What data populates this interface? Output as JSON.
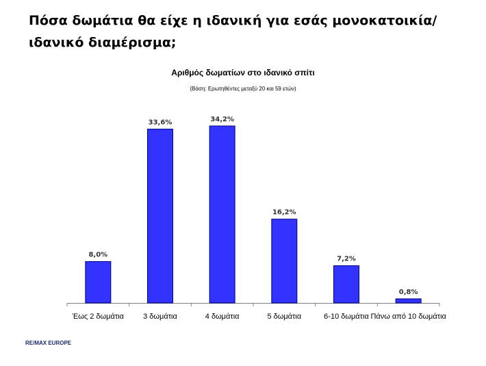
{
  "slide": {
    "title": "Πόσα δωμάτια θα είχε η ιδανική για εσάς μονοκατοικία/ιδανικό διαμέρισμα;",
    "footer": "RE/MAX EUROPE"
  },
  "colors": {
    "bar": "#3333ff",
    "bar_stroke": "#000080",
    "axis": "#808080"
  },
  "chart_data": {
    "type": "bar",
    "title": "Αριθμός δωματίων στο ιδανικό σπίτι",
    "subtitle": "(Βάση: Ερωτηθέντες μεταξύ 20 και 59 ετών)",
    "categories": [
      "Έως 2 δωμάτια",
      "3 δωμάτια",
      "4 δωμάτια",
      "5 δωμάτια",
      "6-10 δωμάτια",
      "Πάνω από 10 δωμάτια"
    ],
    "values": [
      8.0,
      33.6,
      34.2,
      16.2,
      7.2,
      0.8
    ],
    "data_labels": [
      "8,0%",
      "33,6%",
      "34,2%",
      "16,2%",
      "7,2%",
      "0,8%"
    ],
    "unit": "%",
    "ylim": [
      0,
      40
    ],
    "grid": false,
    "legend": "none"
  }
}
